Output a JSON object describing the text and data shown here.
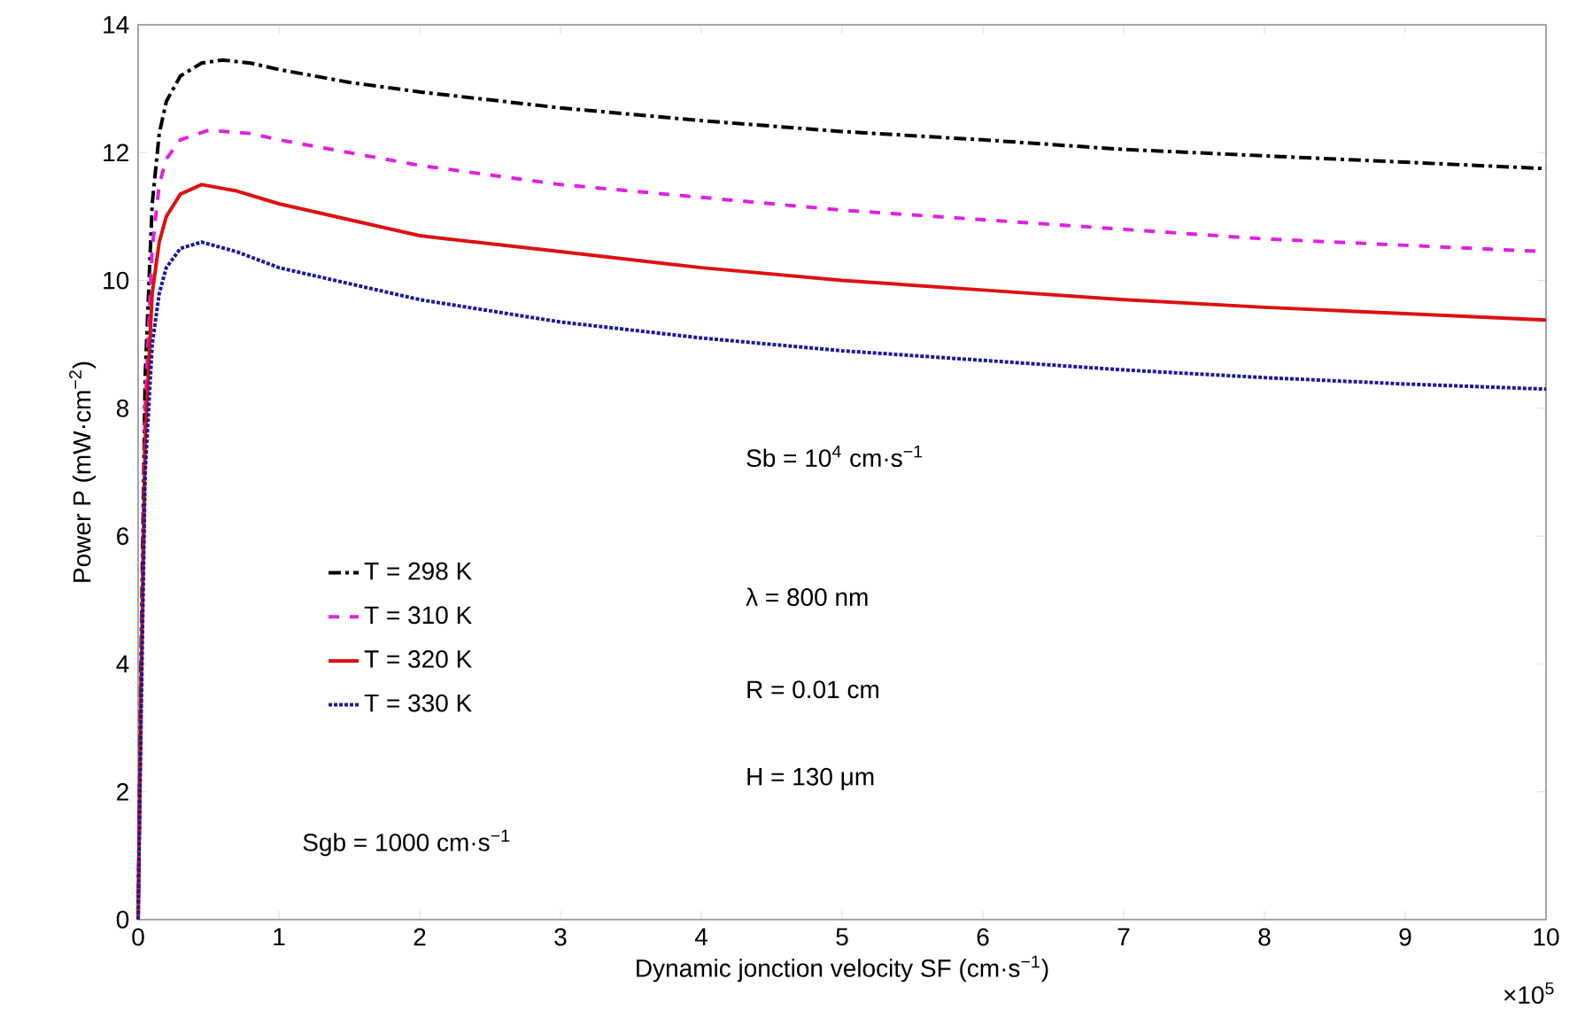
{
  "chart_data": {
    "type": "line",
    "xlabel": "Dynamic jonction velocity SF (cm·s$^{−1}$)",
    "ylabel": "Power P (mW·cm$^{−2}$)",
    "xlim": [
      0,
      10
    ],
    "ylim": [
      0,
      14
    ],
    "xticks": [
      0,
      1,
      2,
      3,
      4,
      5,
      6,
      7,
      8,
      9,
      10
    ],
    "yticks": [
      0,
      2,
      4,
      6,
      8,
      10,
      12,
      14
    ],
    "grid": false,
    "legend": "left",
    "marker": "none",
    "series": [
      {
        "name": "T = 298 K",
        "color": "#000000",
        "line_style": "dashdot",
        "x": [
          0,
          0.02,
          0.05,
          0.1,
          0.15,
          0.2,
          0.3,
          0.45,
          0.6,
          0.8,
          1,
          1.5,
          2,
          3,
          4,
          5,
          6,
          7,
          8,
          9,
          10
        ],
        "values": [
          0,
          4,
          8.5,
          11.2,
          12.3,
          12.8,
          13.2,
          13.4,
          13.45,
          13.4,
          13.3,
          13.1,
          12.95,
          12.7,
          12.5,
          12.33,
          12.2,
          12.05,
          11.95,
          11.85,
          11.75
        ]
      },
      {
        "name": "T = 310 K",
        "color": "#e020e0",
        "line_style": "dashed",
        "x": [
          0,
          0.02,
          0.05,
          0.1,
          0.15,
          0.2,
          0.3,
          0.5,
          0.8,
          1,
          1.5,
          2,
          3,
          4,
          5,
          6,
          7,
          8,
          9,
          10
        ],
        "values": [
          0,
          3.5,
          8,
          10.5,
          11.5,
          11.9,
          12.2,
          12.35,
          12.3,
          12.2,
          12.0,
          11.8,
          11.5,
          11.3,
          11.1,
          10.95,
          10.8,
          10.65,
          10.55,
          10.45
        ]
      },
      {
        "name": "T = 320 K",
        "color": "#dd1111",
        "line_style": "solid",
        "x": [
          0,
          0.02,
          0.05,
          0.1,
          0.15,
          0.2,
          0.3,
          0.45,
          0.7,
          1,
          1.5,
          2,
          3,
          4,
          5,
          6,
          7,
          8,
          9,
          10
        ],
        "values": [
          0,
          3.5,
          7.5,
          9.8,
          10.6,
          11.0,
          11.35,
          11.5,
          11.4,
          11.2,
          10.95,
          10.7,
          10.45,
          10.2,
          10.0,
          9.85,
          9.7,
          9.58,
          9.48,
          9.38
        ]
      },
      {
        "name": "T = 330 K",
        "color": "#1a1a9a",
        "line_style": "dotted",
        "x": [
          0,
          0.02,
          0.05,
          0.1,
          0.15,
          0.2,
          0.3,
          0.45,
          0.7,
          1,
          1.5,
          2,
          3,
          4,
          5,
          6,
          7,
          8,
          9,
          10
        ],
        "values": [
          0,
          3,
          7,
          9.0,
          9.8,
          10.2,
          10.5,
          10.6,
          10.45,
          10.2,
          9.95,
          9.7,
          9.35,
          9.1,
          8.9,
          8.75,
          8.6,
          8.48,
          8.38,
          8.3
        ]
      }
    ],
    "annotations": [
      "Sgb = 1000 cm·s$^{−1}$",
      "Sb = 10$^{4}$ cm·s$^{−1}$",
      "λ = 800 nm",
      "R = 0.01 cm",
      "H = 130 μm",
      "×10$^{5}$"
    ]
  }
}
